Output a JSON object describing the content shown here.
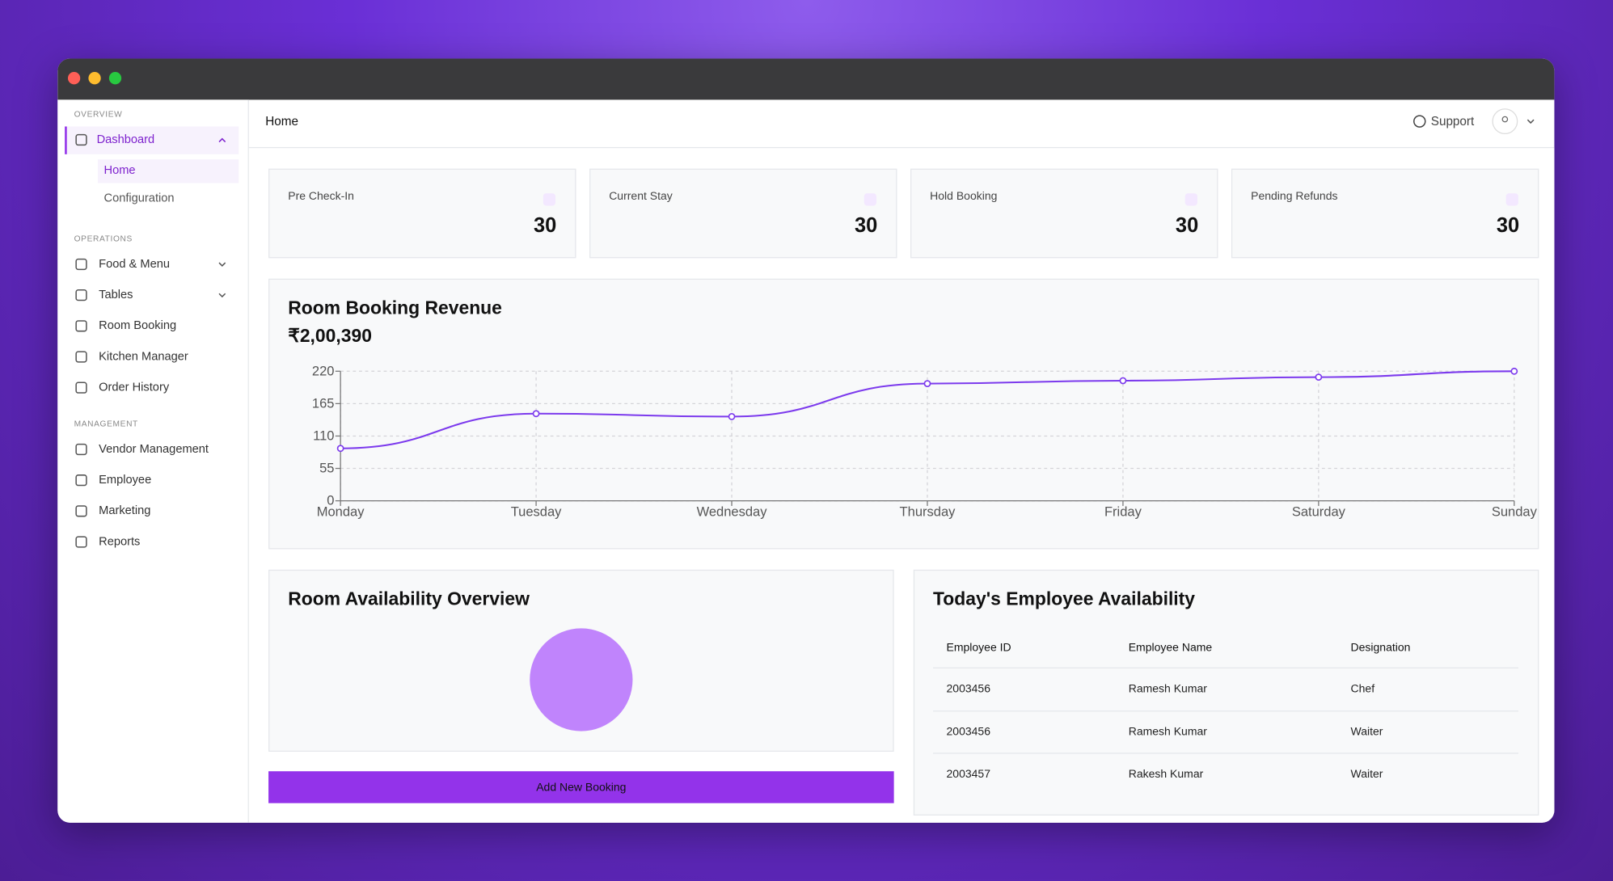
{
  "header": {
    "breadcrumb": "Home",
    "support": "Support"
  },
  "sidebar": {
    "sections": [
      {
        "title": "OVERVIEW",
        "items": [
          {
            "label": "Dashboard",
            "dropdown": "open",
            "children": [
              {
                "label": "Home",
                "active": true
              },
              {
                "label": "Configuration"
              }
            ]
          }
        ]
      },
      {
        "title": "OPERATIONS",
        "items": [
          {
            "label": "Food & Menu",
            "dropdown": "closed"
          },
          {
            "label": "Tables",
            "dropdown": "closed"
          },
          {
            "label": "Room Booking"
          },
          {
            "label": "Kitchen Manager"
          },
          {
            "label": "Order History"
          }
        ]
      },
      {
        "title": "MANAGEMENT",
        "items": [
          {
            "label": "Vendor Management"
          },
          {
            "label": "Employee"
          },
          {
            "label": "Marketing"
          },
          {
            "label": "Reports"
          }
        ]
      }
    ]
  },
  "stats": [
    {
      "label": "Pre Check-In",
      "value": 30
    },
    {
      "label": "Current Stay",
      "value": 30
    },
    {
      "label": "Hold Booking",
      "value": 30
    },
    {
      "label": "Pending Refunds",
      "value": 30
    }
  ],
  "chart_data": [
    {
      "type": "line",
      "title": "Room Booking Revenue",
      "subtitle": "₹2,00,390",
      "categories": [
        "Monday",
        "Tuesday",
        "Wednesday",
        "Thursday",
        "Friday",
        "Saturday",
        "Sunday"
      ],
      "values": [
        89,
        148,
        143,
        199,
        204,
        210,
        220
      ],
      "color": "#7c3aed",
      "ylim": [
        0,
        220
      ],
      "yticks": [
        0,
        55,
        110,
        165,
        220
      ],
      "grid": true
    },
    {
      "type": "pie",
      "title": "Room Availability Overview",
      "values": [
        100
      ],
      "colors": [
        "#c084fc"
      ]
    }
  ],
  "employee_table": {
    "title": "Today's Employee Availability",
    "columns": [
      "Employee ID",
      "Employee Name",
      "Designation"
    ],
    "rows": [
      [
        "2003456",
        "Ramesh Kumar",
        "Chef"
      ],
      [
        "2003456",
        "Ramesh Kumar",
        "Waiter"
      ],
      [
        "2003457",
        "Rakesh Kumar",
        "Waiter"
      ]
    ]
  },
  "button": "Add New Booking"
}
